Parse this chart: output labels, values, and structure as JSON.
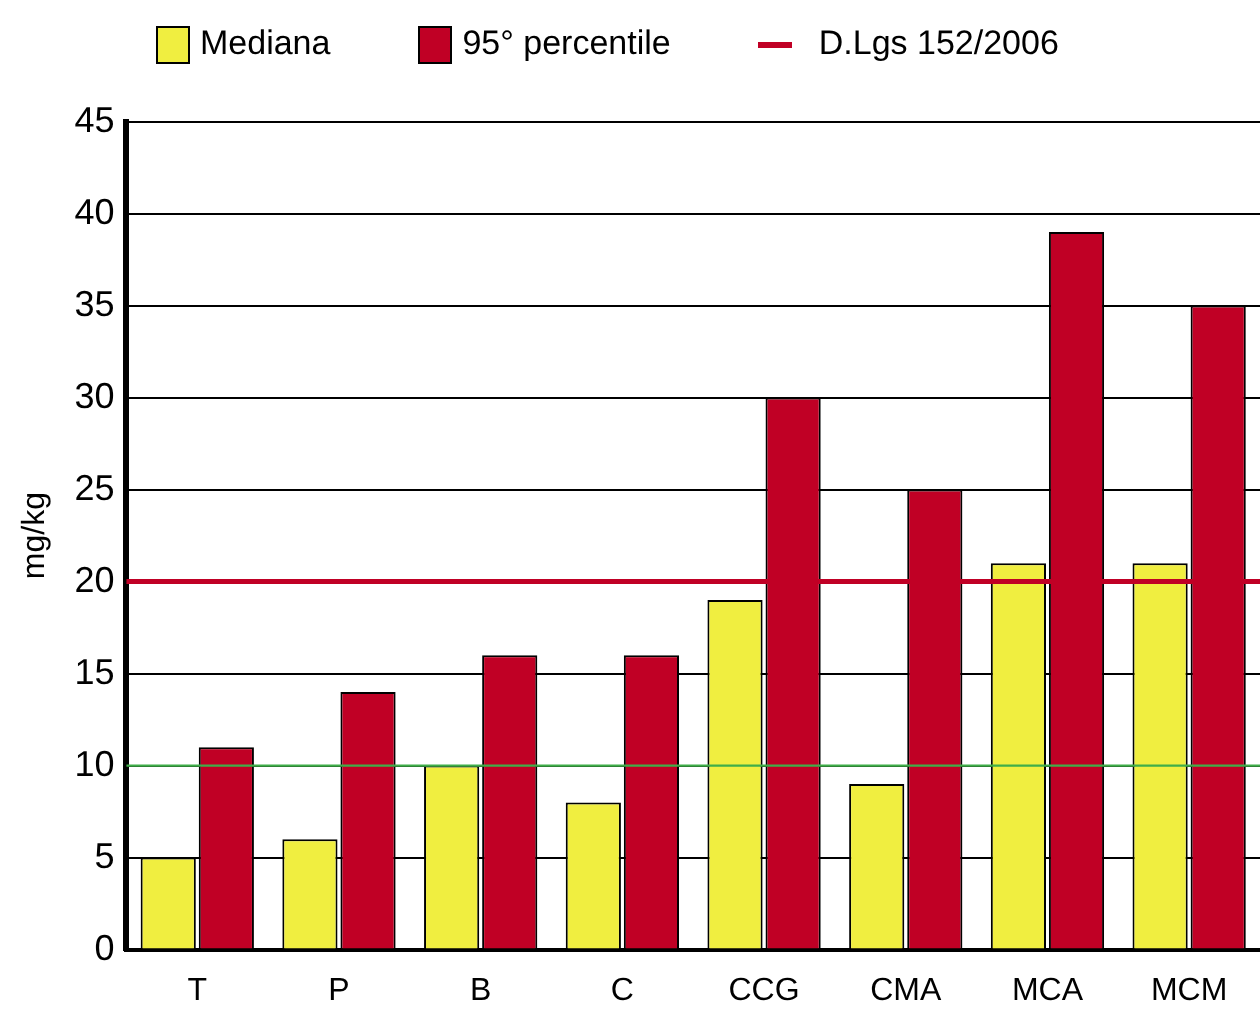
{
  "chart_data": {
    "type": "bar",
    "ylabel": "mg/kg",
    "categories": [
      "T",
      "P",
      "B",
      "C",
      "CCG",
      "CMA",
      "MCA",
      "MCM"
    ],
    "series": [
      {
        "name": "Mediana",
        "color": "#f0ee40",
        "values": [
          5,
          6,
          10,
          8,
          19,
          9,
          21,
          21
        ]
      },
      {
        "name": "95° percentile",
        "color": "#c00025",
        "values": [
          11,
          14,
          16,
          16,
          30,
          25,
          39,
          35
        ]
      }
    ],
    "ylim": [
      0,
      45
    ],
    "yticks": [
      0,
      5,
      10,
      15,
      20,
      25,
      30,
      35,
      40,
      45
    ],
    "grid": "y",
    "legend": "top",
    "ref_lines": [
      {
        "axis": "y",
        "value": 20,
        "label": "D.Lgs 152/2006",
        "color": "#c00025"
      },
      {
        "axis": "y",
        "value": 10,
        "color": "#3fae49"
      }
    ]
  }
}
